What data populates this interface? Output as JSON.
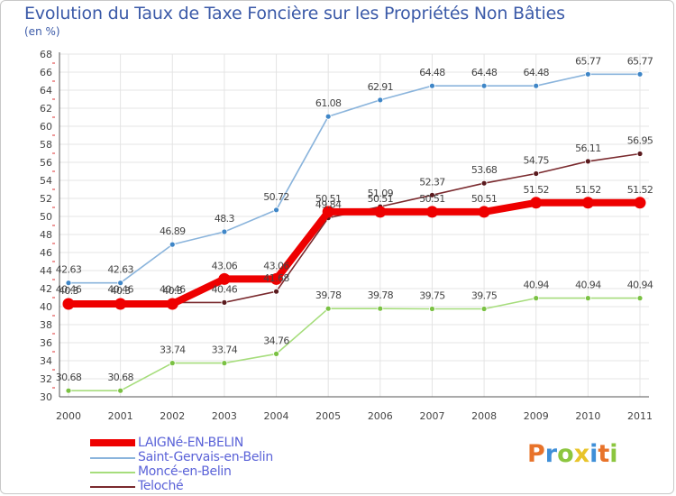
{
  "title": "Evolution du Taux de Taxe Foncière sur les Propriétés Non Bâties",
  "unit_label": "(en %)",
  "logo_text": "Proxiti",
  "logo_colors": [
    "#e8732a",
    "#3f8fd8",
    "#8cc63f",
    "#e8c42a",
    "#3f8fd8",
    "#e8732a",
    "#8cc63f"
  ],
  "chart_data": {
    "type": "line",
    "title": "Evolution du Taux de Taxe Foncière sur les Propriétés Non Bâties",
    "ylabel": "(en %)",
    "xlabel": "",
    "categories": [
      "2000",
      "2001",
      "2002",
      "2003",
      "2004",
      "2005",
      "2006",
      "2007",
      "2008",
      "2009",
      "2010",
      "2011"
    ],
    "ylim": [
      30,
      68
    ],
    "yticks": [
      30,
      32,
      34,
      36,
      38,
      40,
      42,
      44,
      46,
      48,
      50,
      52,
      54,
      56,
      58,
      60,
      62,
      64,
      66,
      68
    ],
    "grid": true,
    "legend_position": "bottom-left",
    "series": [
      {
        "name": "Teloché",
        "color": "#7a2a2e",
        "marker": "#5a1a1e",
        "values": [
          40.46,
          40.46,
          40.46,
          40.46,
          41.68,
          49.84,
          51.09,
          52.37,
          53.68,
          54.75,
          56.11,
          56.95
        ],
        "labels": [
          "40.46",
          "40.46",
          "40.46",
          "40.46",
          "41.68",
          "49.84",
          "51.09",
          "52.37",
          "53.68",
          "54.75",
          "56.11",
          "56.95"
        ]
      },
      {
        "name": "Moncé-en-Belin",
        "color": "#a6dd7c",
        "marker": "#7ac143",
        "values": [
          30.68,
          30.68,
          33.74,
          33.74,
          34.76,
          39.78,
          39.78,
          39.75,
          39.75,
          40.94,
          40.94,
          40.94
        ],
        "labels": [
          "30.68",
          "30.68",
          "33.74",
          "33.74",
          "34.76",
          "39.78",
          "39.78",
          "39.75",
          "39.75",
          "40.94",
          "40.94",
          "40.94"
        ]
      },
      {
        "name": "Saint-Gervais-en-Belin",
        "color": "#8ab4dc",
        "marker": "#3f86c7",
        "values": [
          42.63,
          42.63,
          46.89,
          48.3,
          50.72,
          61.08,
          62.91,
          64.48,
          64.48,
          64.48,
          65.77,
          65.77
        ],
        "labels": [
          "42.63",
          "42.63",
          "46.89",
          "48.3",
          "50.72",
          "61.08",
          "62.91",
          "64.48",
          "64.48",
          "64.48",
          "65.77",
          "65.77"
        ]
      },
      {
        "name": "LAIGNé-EN-BELIN",
        "color": "#ee0000",
        "marker": "#ee0000",
        "values": [
          40.3,
          40.3,
          40.3,
          43.06,
          43.06,
          50.51,
          50.51,
          50.51,
          50.51,
          51.52,
          51.52,
          51.52
        ],
        "labels": [
          "40.3",
          "40.3",
          "40.3",
          "43.06",
          "43.06",
          "50.51",
          "50.51",
          "50.51",
          "50.51",
          "51.52",
          "51.52",
          "51.52"
        ]
      }
    ],
    "legend": [
      "LAIGNé-EN-BELIN",
      "Saint-Gervais-en-Belin",
      "Moncé-en-Belin",
      "Teloché"
    ]
  }
}
